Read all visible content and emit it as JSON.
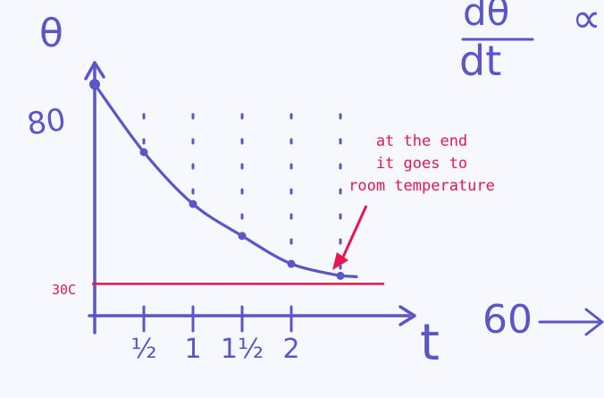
{
  "chart_data": {
    "type": "line",
    "ylabel": "θ",
    "xlabel": "t",
    "y_tick_label": "80",
    "x_tick_labels": [
      "½",
      "1",
      "1½",
      "2"
    ],
    "x_ticks": [
      0.5,
      1,
      1.5,
      2
    ],
    "series": [
      {
        "x": [
          0,
          0.5,
          1,
          1.5,
          2,
          2.5
        ],
        "y": [
          80,
          63,
          50,
          42,
          35,
          32
        ]
      }
    ],
    "reference_line": {
      "y": 30,
      "label": "30C"
    },
    "xlim": [
      0,
      2.9
    ],
    "ylim": [
      22,
      85
    ],
    "annotation": {
      "lines": [
        "at the end",
        "it goes to",
        "room temperature"
      ]
    },
    "side_notes": {
      "fraction_top": "dθ",
      "fraction_bottom": "dt",
      "proportional": "∝",
      "right_label": "60"
    }
  },
  "colors": {
    "ink": "#5a56c8",
    "red": "#e8164c",
    "board": "#f7f8fd"
  }
}
